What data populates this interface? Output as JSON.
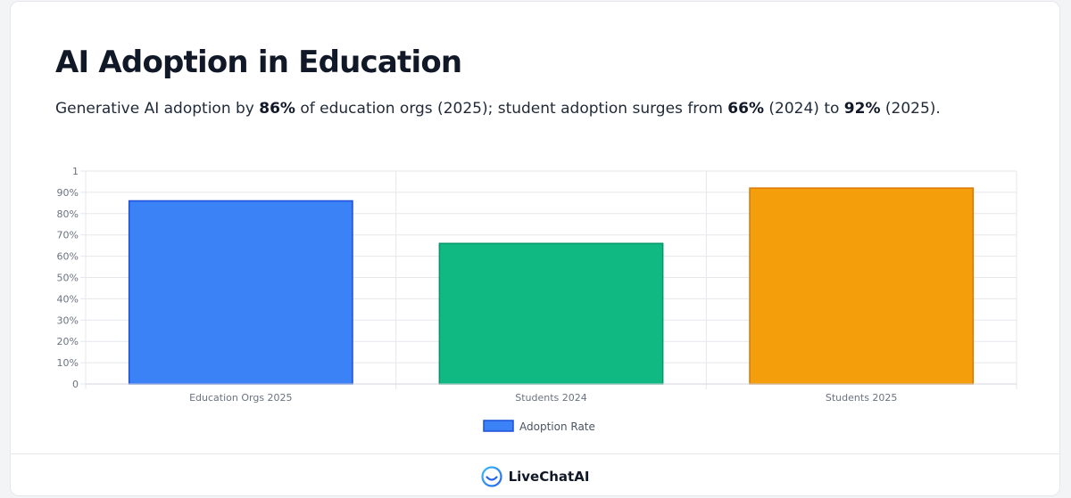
{
  "header": {
    "title": "AI Adoption in Education",
    "subtitle": {
      "t1": "Generative AI adoption by ",
      "b1": "86%",
      "t2": " of education orgs (2025); student adoption surges from ",
      "b2": "66%",
      "t3": " (2024) to ",
      "b3": "92%",
      "t4": " (2025)."
    }
  },
  "chart_data": {
    "type": "bar",
    "categories": [
      "Education Orgs 2025",
      "Students 2024",
      "Students 2025"
    ],
    "series": [
      {
        "name": "Adoption Rate",
        "values": [
          0.86,
          0.66,
          0.92
        ],
        "colors": [
          "#3b82f6",
          "#10b981",
          "#f59e0b"
        ],
        "border_colors": [
          "#1d4ed8",
          "#059669",
          "#d97706"
        ]
      }
    ],
    "ylim": [
      0,
      1
    ],
    "yticks": [
      "0",
      "10%",
      "20%",
      "30%",
      "40%",
      "50%",
      "60%",
      "70%",
      "80%",
      "90%",
      "1"
    ],
    "grid": true,
    "legend": "bottom"
  },
  "footer": {
    "brand": "LiveChatAI",
    "logo_icon": "livechatai-logo-icon"
  }
}
